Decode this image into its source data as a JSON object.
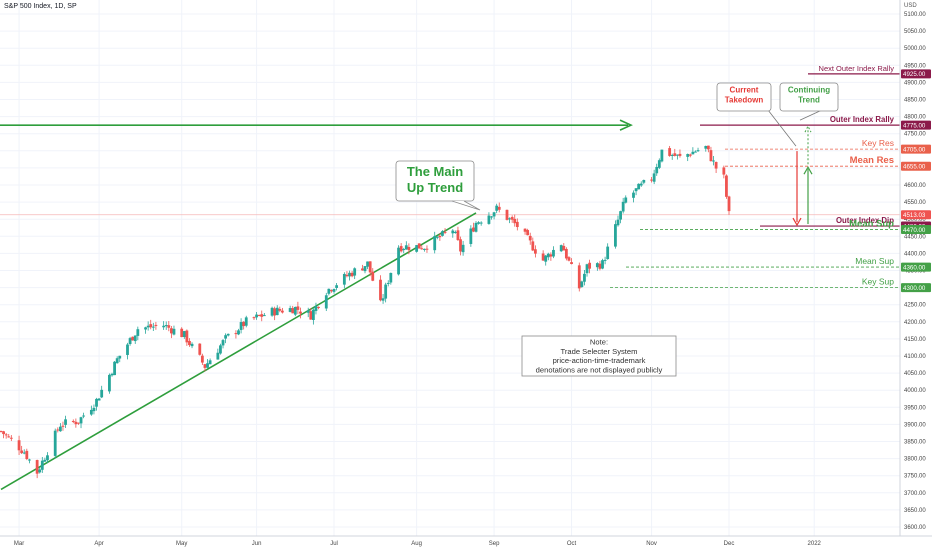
{
  "header": {
    "symbol_title": "S&P 500 Index, 1D, SP",
    "currency": "USD"
  },
  "chart_data": {
    "type": "candlestick",
    "title": "S&P 500 Index, 1D, SP",
    "y_axis": {
      "unit": "USD",
      "range": [
        3580,
        5130
      ],
      "ticks": [
        3600,
        3650,
        3700,
        3750,
        3800,
        3850,
        3900,
        3950,
        4000,
        4050,
        4100,
        4150,
        4200,
        4250,
        4300,
        4350,
        4400,
        4450,
        4500,
        4550,
        4600,
        4650,
        4700,
        4750,
        4800,
        4850,
        4900,
        4950,
        5000,
        5050,
        5100
      ],
      "tick_labels": [
        "3600.00",
        "3650.00",
        "3700.00",
        "3750.00",
        "3800.00",
        "3850.00",
        "3900.00",
        "3950.00",
        "4000.00",
        "4050.00",
        "4100.00",
        "4150.00",
        "4200.00",
        "4250.00",
        "4300.00",
        "4350.00",
        "4400.00",
        "4450.00",
        "4500.00",
        "4550.00",
        "4600.00",
        "4650.00",
        "4700.00",
        "4750.00",
        "4800.00",
        "4850.00",
        "4900.00",
        "4950.00",
        "5000.00",
        "5050.00",
        "5100.00"
      ],
      "position": "right"
    },
    "x_axis": {
      "labels": [
        "Mar",
        "Apr",
        "May",
        "Jun",
        "Jul",
        "Aug",
        "Sep",
        "Oct",
        "Nov",
        "Dec",
        "2022"
      ],
      "range": [
        "2021-02-22",
        "2022-01-25"
      ]
    },
    "grid": true,
    "colors": {
      "up": "#26a69a",
      "down": "#ef5350",
      "trend": "#2e9e3c",
      "outer": "#8b1a4a",
      "res": "#e9604b",
      "sup": "#43a047"
    },
    "series": [
      {
        "type": "close_path",
        "points": [
          [
            "2021-02-22",
            3880
          ],
          [
            "2021-03-03",
            3820
          ],
          [
            "2021-03-08",
            3760
          ],
          [
            "2021-03-17",
            3900
          ],
          [
            "2021-03-24",
            3910
          ],
          [
            "2021-03-31",
            3970
          ],
          [
            "2021-04-08",
            4090
          ],
          [
            "2021-04-16",
            4180
          ],
          [
            "2021-04-26",
            4190
          ],
          [
            "2021-05-04",
            4160
          ],
          [
            "2021-05-12",
            4070
          ],
          [
            "2021-05-20",
            4150
          ],
          [
            "2021-05-28",
            4200
          ],
          [
            "2021-06-07",
            4230
          ],
          [
            "2021-06-16",
            4240
          ],
          [
            "2021-06-22",
            4220
          ],
          [
            "2021-06-28",
            4290
          ],
          [
            "2021-07-07",
            4340
          ],
          [
            "2021-07-14",
            4370
          ],
          [
            "2021-07-19",
            4250
          ],
          [
            "2021-07-26",
            4420
          ],
          [
            "2021-08-05",
            4420
          ],
          [
            "2021-08-16",
            4470
          ],
          [
            "2021-08-19",
            4410
          ],
          [
            "2021-08-25",
            4490
          ],
          [
            "2021-09-02",
            4530
          ],
          [
            "2021-09-10",
            4480
          ],
          [
            "2021-09-20",
            4380
          ],
          [
            "2021-09-27",
            4430
          ],
          [
            "2021-10-04",
            4300
          ],
          [
            "2021-10-07",
            4360
          ],
          [
            "2021-10-13",
            4370
          ],
          [
            "2021-10-22",
            4560
          ],
          [
            "2021-11-01",
            4620
          ],
          [
            "2021-11-05",
            4700
          ],
          [
            "2021-11-12",
            4680
          ],
          [
            "2021-11-18",
            4700
          ],
          [
            "2021-11-22",
            4710
          ],
          [
            "2021-11-26",
            4650
          ],
          [
            "2021-11-29",
            4620
          ],
          [
            "2021-12-01",
            4513.03
          ]
        ],
        "note": "candles drawn around this daily close path"
      }
    ],
    "levels": [
      {
        "label": "Next Outer Index Rally",
        "value": 4925,
        "badge": "4925.00",
        "style": "outer"
      },
      {
        "label": "Outer Index Rally",
        "value": 4775,
        "badge": "4775.00",
        "style": "outer"
      },
      {
        "label": "Key Res",
        "value": 4705,
        "badge": "4705.00",
        "style": "res"
      },
      {
        "label": "Mean Res",
        "value": 4655,
        "badge": "4655.00",
        "style": "res"
      },
      {
        "label": "",
        "value": 4513.03,
        "badge": "4513.03",
        "style": "last"
      },
      {
        "label": "Outer Index Dip",
        "value": 4480,
        "badge": "4480.00",
        "style": "outer"
      },
      {
        "label": "Mean Sup",
        "value": 4470,
        "badge": "4470.00",
        "style": "sup"
      },
      {
        "label": "Mean Sup",
        "value": 4360,
        "badge": "4360.00",
        "style": "sup"
      },
      {
        "label": "Key Sup",
        "value": 4300,
        "badge": "4300.00",
        "style": "sup"
      }
    ],
    "annotations": {
      "main_trend": [
        "The Main",
        "Up Trend"
      ],
      "current_takedown": [
        "Current",
        "Takedown"
      ],
      "continuing_trend": [
        "Continuing",
        "Trend"
      ],
      "note": [
        "Note:",
        "Trade Selecter System",
        "price-action-time-trademark",
        "denotations are not displayed publicly"
      ]
    },
    "trendline": {
      "from": [
        "2021-02-22",
        3710
      ],
      "to": [
        "2021-08-25",
        4495
      ]
    },
    "outer_arrow": {
      "from": [
        "2021-02-22",
        4775
      ],
      "to": [
        "2021-10-31",
        4775
      ]
    }
  }
}
